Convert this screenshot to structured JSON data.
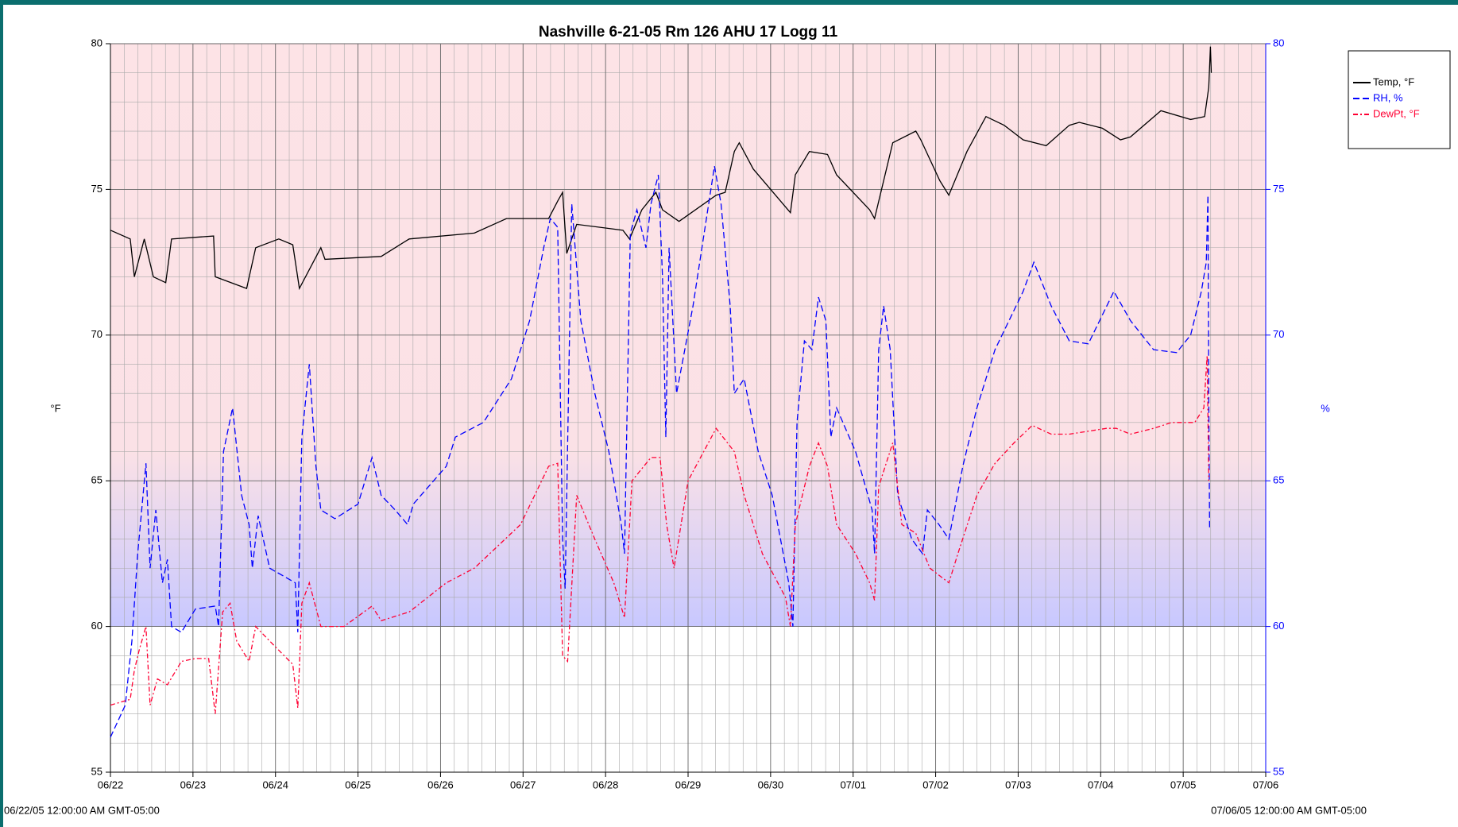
{
  "chart_data": {
    "type": "line",
    "title": "Nashville 6-21-05 Rm 126 AHU 17 Logg 11",
    "y_label": "°F",
    "y2_label": "%",
    "x_start_label": "06/22/05 12:00:00 AM GMT-05:00",
    "x_end_label": "07/06/05 12:00:00 AM GMT-05:00",
    "xlim": [
      0,
      14
    ],
    "xticks": [
      {
        "value": 0,
        "label": "06/22"
      },
      {
        "value": 1,
        "label": "06/23"
      },
      {
        "value": 2,
        "label": "06/24"
      },
      {
        "value": 3,
        "label": "06/25"
      },
      {
        "value": 4,
        "label": "06/26"
      },
      {
        "value": 5,
        "label": "06/27"
      },
      {
        "value": 6,
        "label": "06/28"
      },
      {
        "value": 7,
        "label": "06/29"
      },
      {
        "value": 8,
        "label": "06/30"
      },
      {
        "value": 9,
        "label": "07/01"
      },
      {
        "value": 10,
        "label": "07/02"
      },
      {
        "value": 11,
        "label": "07/03"
      },
      {
        "value": 12,
        "label": "07/04"
      },
      {
        "value": 13,
        "label": "07/05"
      },
      {
        "value": 14,
        "label": "07/06"
      }
    ],
    "ylim": [
      55,
      80
    ],
    "yticks": [
      55,
      60,
      65,
      70,
      75,
      80
    ],
    "y2lim": [
      55,
      80
    ],
    "y2ticks": [
      55,
      60,
      65,
      70,
      75,
      80
    ],
    "grid": true,
    "shaded_band": [
      60,
      80
    ],
    "legend": "top-right",
    "series": [
      {
        "name": "Temp, °F",
        "color": "#000000",
        "style": "solid",
        "x": [
          0,
          0.24,
          0.29,
          0.41,
          0.52,
          0.67,
          0.74,
          1.25,
          1.27,
          1.65,
          1.76,
          2.04,
          2.21,
          2.29,
          2.55,
          2.6,
          3.28,
          3.62,
          4.41,
          4.8,
          5.31,
          5.42,
          5.48,
          5.53,
          5.65,
          6.21,
          6.29,
          6.44,
          6.61,
          6.69,
          6.89,
          7.34,
          7.45,
          7.56,
          7.62,
          7.79,
          8.24,
          8.3,
          8.47,
          8.69,
          8.8,
          9.2,
          9.26,
          9.48,
          9.76,
          9.82,
          10.05,
          10.16,
          10.38,
          10.61,
          10.83,
          11.06,
          11.34,
          11.62,
          11.74,
          12.02,
          12.24,
          12.36,
          12.73,
          13.09,
          13.26,
          13.31,
          13.33,
          13.34
        ],
        "values": [
          73.6,
          73.3,
          72.0,
          73.3,
          72.0,
          71.8,
          73.3,
          73.4,
          72.0,
          71.6,
          73.0,
          73.3,
          73.1,
          71.6,
          73.0,
          72.6,
          72.7,
          73.3,
          73.5,
          74.0,
          74.0,
          74.6,
          74.9,
          72.8,
          73.8,
          73.6,
          73.3,
          74.3,
          74.9,
          74.3,
          73.9,
          74.8,
          74.9,
          76.3,
          76.6,
          75.7,
          74.2,
          75.5,
          76.3,
          76.2,
          75.5,
          74.3,
          74.0,
          76.6,
          77.0,
          76.7,
          75.3,
          74.8,
          76.3,
          77.5,
          77.2,
          76.7,
          76.5,
          77.2,
          77.3,
          77.1,
          76.7,
          76.8,
          77.7,
          77.4,
          77.5,
          78.5,
          79.9,
          79.0
        ]
      },
      {
        "name": "RH, %",
        "color": "#0000ff",
        "style": "dashed",
        "axis": "y2",
        "x": [
          0,
          0.18,
          0.26,
          0.33,
          0.43,
          0.48,
          0.55,
          0.63,
          0.69,
          0.74,
          0.86,
          1.03,
          1.27,
          1.31,
          1.37,
          1.48,
          1.59,
          1.68,
          1.72,
          1.79,
          1.93,
          2.24,
          2.27,
          2.32,
          2.41,
          2.49,
          2.55,
          2.72,
          3.0,
          3.17,
          3.28,
          3.45,
          3.6,
          3.67,
          4.07,
          4.18,
          4.52,
          4.86,
          5.08,
          5.25,
          5.33,
          5.42,
          5.48,
          5.51,
          5.59,
          5.7,
          5.87,
          6.04,
          6.19,
          6.23,
          6.3,
          6.38,
          6.49,
          6.55,
          6.64,
          6.69,
          6.73,
          6.77,
          6.86,
          7.06,
          7.32,
          7.4,
          7.51,
          7.56,
          7.68,
          7.85,
          8.02,
          8.22,
          8.27,
          8.32,
          8.41,
          8.5,
          8.58,
          8.67,
          8.73,
          8.8,
          9.03,
          9.23,
          9.26,
          9.31,
          9.37,
          9.45,
          9.54,
          9.71,
          9.84,
          9.9,
          10.04,
          10.16,
          10.33,
          10.5,
          10.72,
          11.06,
          11.19,
          11.4,
          11.62,
          11.85,
          12.16,
          12.36,
          12.64,
          12.92,
          13.09,
          13.22,
          13.28,
          13.3,
          13.31,
          13.32
        ],
        "values": [
          56.2,
          57.3,
          59.5,
          62.5,
          65.6,
          62.0,
          64.0,
          61.5,
          62.3,
          60.0,
          59.8,
          60.6,
          60.7,
          60.0,
          66.0,
          67.5,
          64.5,
          63.5,
          62.0,
          63.8,
          62.0,
          61.5,
          59.8,
          66.5,
          69.0,
          65.5,
          64.0,
          63.7,
          64.2,
          65.8,
          64.5,
          64.0,
          63.5,
          64.2,
          65.5,
          66.5,
          67.0,
          68.5,
          70.5,
          73.0,
          74.0,
          73.7,
          63.0,
          61.3,
          74.5,
          70.5,
          68.0,
          66.0,
          63.5,
          62.5,
          73.5,
          74.3,
          73.0,
          74.5,
          75.5,
          72.0,
          66.5,
          73.0,
          68.0,
          71.0,
          75.8,
          74.5,
          71.0,
          68.0,
          68.5,
          66.0,
          64.5,
          61.5,
          60.0,
          67.0,
          69.8,
          69.5,
          71.3,
          70.5,
          66.5,
          67.5,
          66.0,
          64.0,
          62.5,
          69.5,
          71.0,
          69.5,
          64.5,
          63.0,
          62.5,
          64.0,
          63.5,
          63.0,
          65.5,
          67.5,
          69.5,
          71.5,
          72.5,
          71.0,
          69.8,
          69.7,
          71.5,
          70.5,
          69.5,
          69.4,
          70.0,
          71.5,
          72.5,
          74.8,
          68.0,
          63.3
        ]
      },
      {
        "name": "DewPt, °F",
        "color": "#ff0033",
        "style": "dashdot",
        "x": [
          0,
          0.24,
          0.29,
          0.35,
          0.43,
          0.48,
          0.57,
          0.69,
          0.86,
          1.03,
          1.19,
          1.27,
          1.36,
          1.45,
          1.53,
          1.68,
          1.76,
          1.93,
          2.21,
          2.27,
          2.32,
          2.41,
          2.55,
          2.83,
          3.17,
          3.28,
          3.62,
          4.07,
          4.41,
          4.97,
          5.31,
          5.42,
          5.48,
          5.54,
          5.65,
          5.87,
          6.1,
          6.23,
          6.32,
          6.55,
          6.66,
          6.74,
          6.83,
          7.0,
          7.34,
          7.56,
          7.68,
          7.9,
          8.18,
          8.24,
          8.3,
          8.47,
          8.58,
          8.69,
          8.8,
          9.03,
          9.2,
          9.26,
          9.31,
          9.48,
          9.59,
          9.76,
          9.93,
          10.16,
          10.27,
          10.5,
          10.72,
          10.95,
          11.17,
          11.4,
          11.62,
          12.07,
          12.19,
          12.36,
          12.64,
          12.86,
          13.14,
          13.25,
          13.29,
          13.31
        ],
        "values": [
          57.3,
          57.5,
          58.5,
          59.2,
          60.0,
          57.3,
          58.2,
          58.0,
          58.8,
          58.9,
          58.9,
          57.0,
          60.5,
          60.8,
          59.5,
          58.8,
          60.0,
          59.5,
          58.7,
          57.2,
          60.8,
          61.5,
          60.0,
          60.0,
          60.7,
          60.2,
          60.5,
          61.5,
          62.0,
          63.5,
          65.5,
          65.6,
          59.0,
          58.8,
          64.5,
          63.0,
          61.5,
          60.3,
          65.0,
          65.8,
          65.8,
          63.5,
          62.0,
          65.0,
          66.8,
          66.0,
          64.5,
          62.5,
          61.0,
          60.0,
          63.5,
          65.5,
          66.3,
          65.5,
          63.5,
          62.5,
          61.5,
          60.9,
          64.8,
          66.3,
          63.5,
          63.2,
          62.0,
          61.5,
          62.5,
          64.5,
          65.6,
          66.3,
          66.9,
          66.6,
          66.6,
          66.8,
          66.8,
          66.6,
          66.8,
          67.0,
          67.0,
          67.5,
          69.3,
          65.0
        ]
      }
    ]
  }
}
